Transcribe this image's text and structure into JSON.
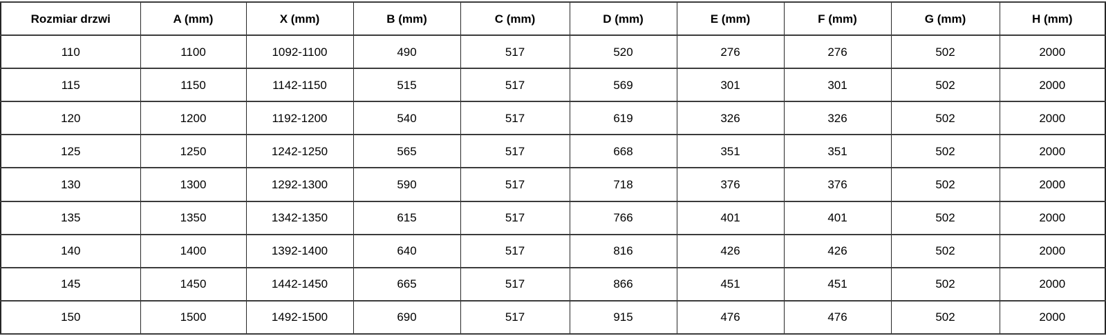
{
  "table": {
    "headers": [
      "Rozmiar drzwi",
      "A (mm)",
      "X (mm)",
      "B (mm)",
      "C (mm)",
      "D (mm)",
      "E (mm)",
      "F (mm)",
      "G (mm)",
      "H (mm)"
    ],
    "rows": [
      [
        "110",
        "1100",
        "1092-1100",
        "490",
        "517",
        "520",
        "276",
        "276",
        "502",
        "2000"
      ],
      [
        "115",
        "1150",
        "1142-1150",
        "515",
        "517",
        "569",
        "301",
        "301",
        "502",
        "2000"
      ],
      [
        "120",
        "1200",
        "1192-1200",
        "540",
        "517",
        "619",
        "326",
        "326",
        "502",
        "2000"
      ],
      [
        "125",
        "1250",
        "1242-1250",
        "565",
        "517",
        "668",
        "351",
        "351",
        "502",
        "2000"
      ],
      [
        "130",
        "1300",
        "1292-1300",
        "590",
        "517",
        "718",
        "376",
        "376",
        "502",
        "2000"
      ],
      [
        "135",
        "1350",
        "1342-1350",
        "615",
        "517",
        "766",
        "401",
        "401",
        "502",
        "2000"
      ],
      [
        "140",
        "1400",
        "1392-1400",
        "640",
        "517",
        "816",
        "426",
        "426",
        "502",
        "2000"
      ],
      [
        "145",
        "1450",
        "1442-1450",
        "665",
        "517",
        "866",
        "451",
        "451",
        "502",
        "2000"
      ],
      [
        "150",
        "1500",
        "1492-1500",
        "690",
        "517",
        "915",
        "476",
        "476",
        "502",
        "2000"
      ]
    ]
  },
  "colors": {
    "border": "#262626",
    "text": "#000000",
    "background": "#ffffff"
  }
}
